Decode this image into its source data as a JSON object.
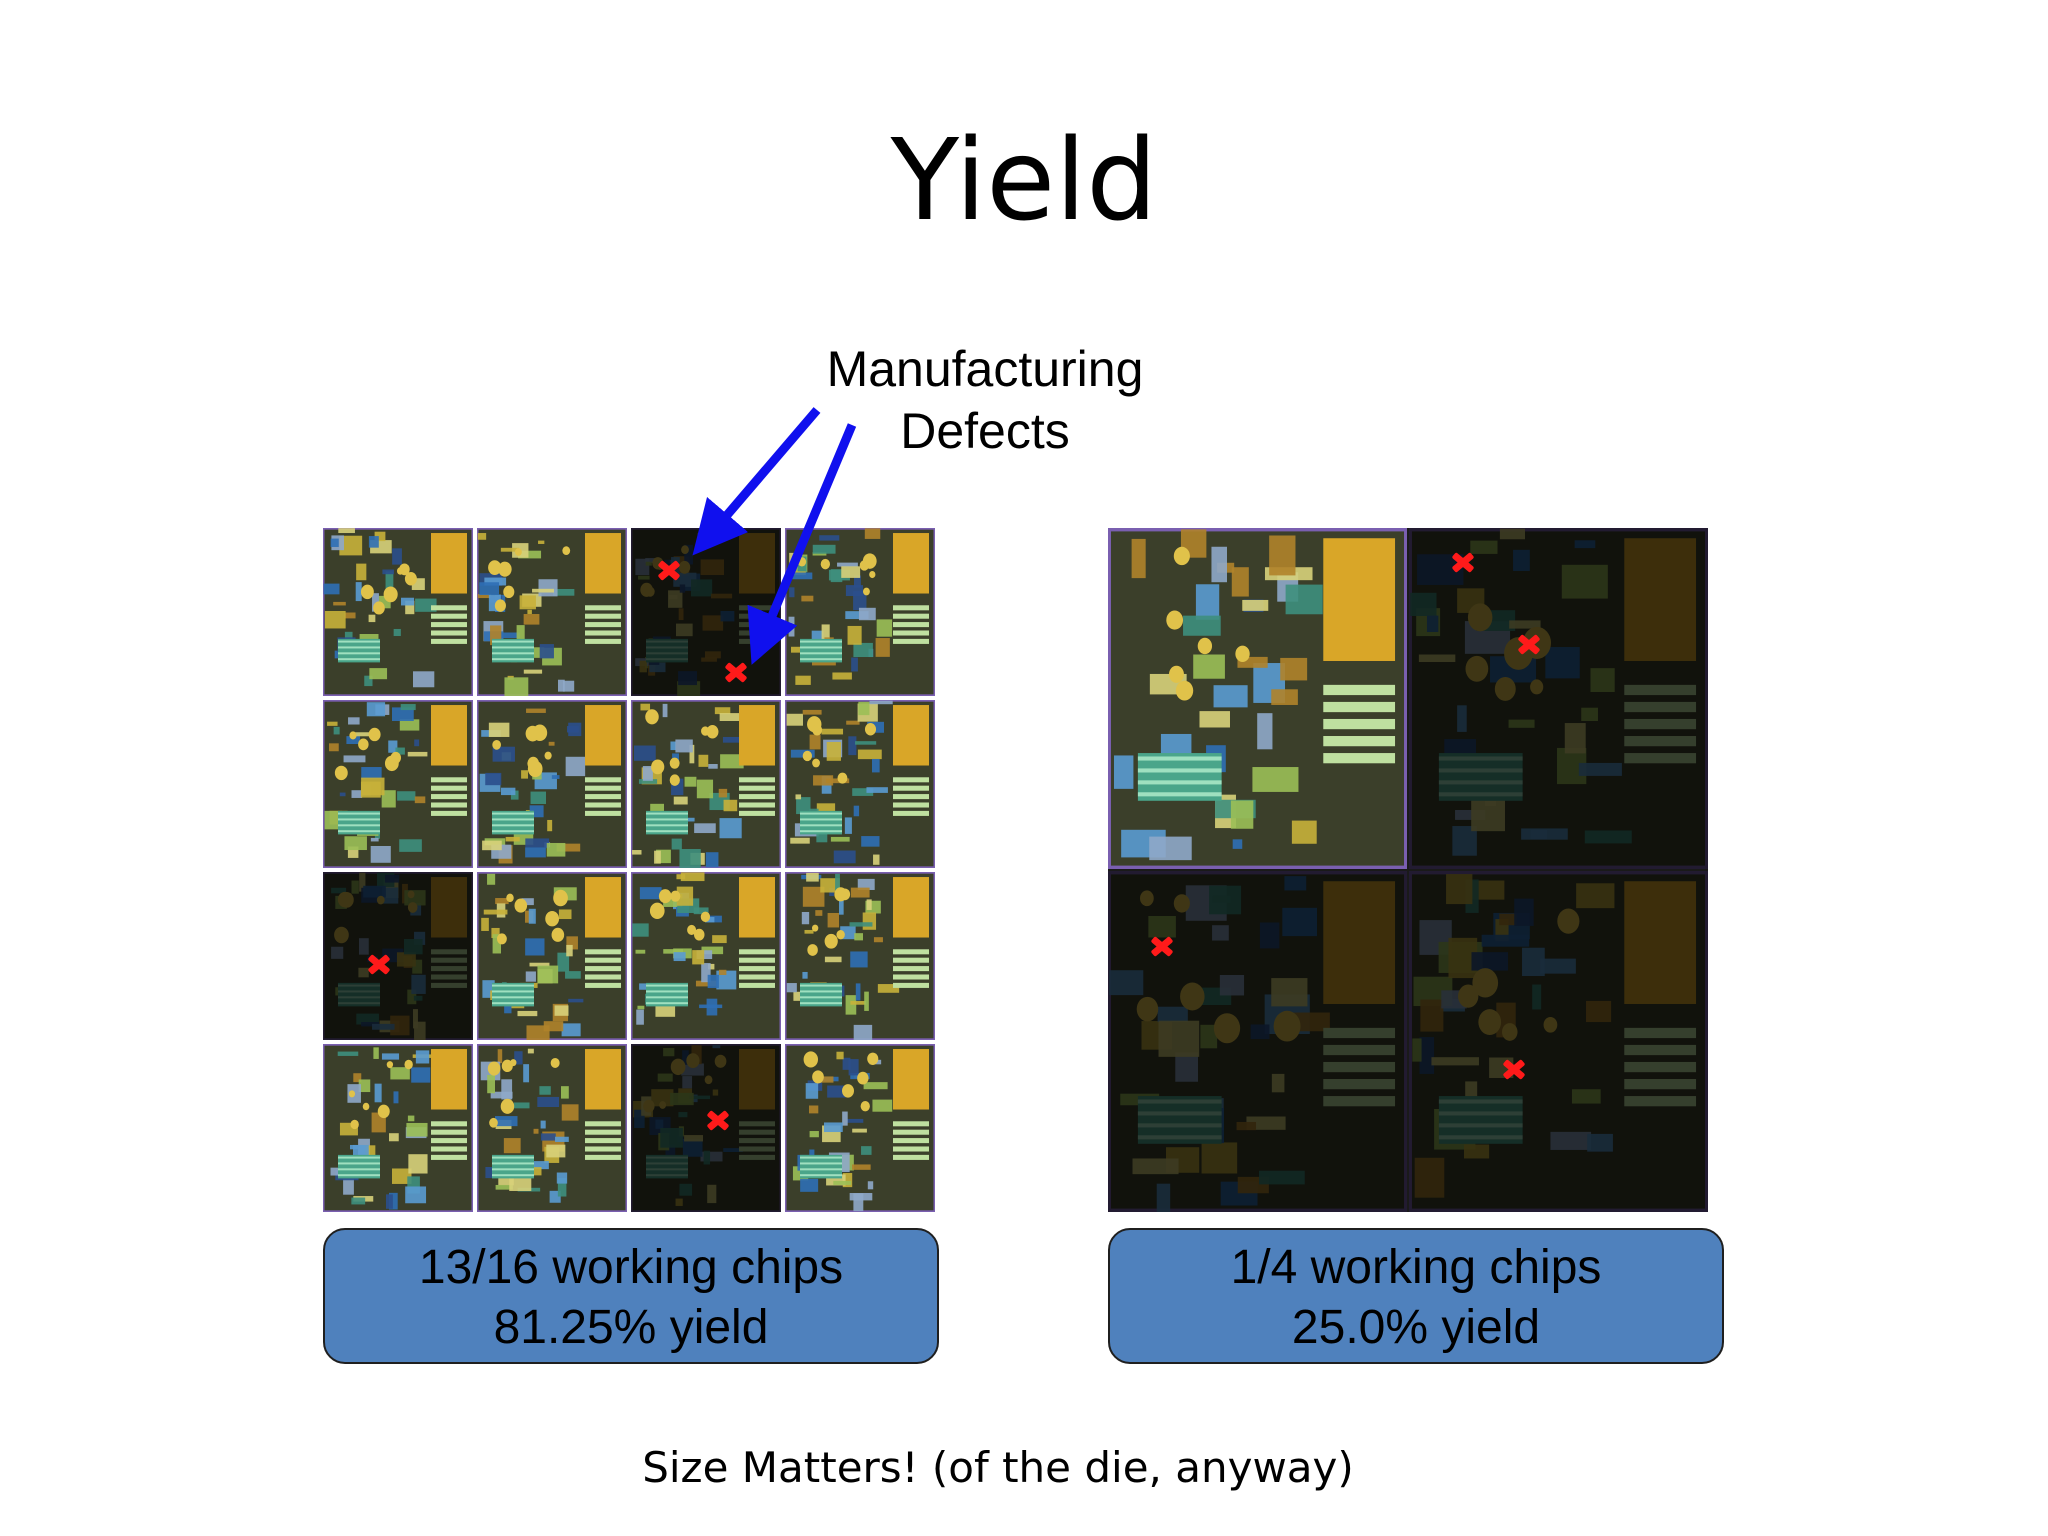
{
  "slide": {
    "title": "Yield",
    "annotation": {
      "line1": "Manufacturing",
      "line2": "Defects"
    },
    "left_wafer": {
      "rows": 4,
      "cols": 4,
      "defective_dies": [
        2,
        8,
        14
      ],
      "caption_line1": "13/16 working chips",
      "caption_line2": "81.25% yield"
    },
    "right_wafer": {
      "rows": 2,
      "cols": 2,
      "defective_dies": [
        1,
        2,
        3
      ],
      "caption_line1": "1/4 working chips",
      "caption_line2": "25.0% yield"
    },
    "footer": "Size Matters!  (of the die, anyway)",
    "colors": {
      "defect_marker": "#ff1a1a",
      "arrow": "#1010ee",
      "caption_box": "#4f81bd"
    },
    "icons": {
      "defect_marker": "x-mark-icon",
      "pointer": "arrow-icon"
    }
  }
}
